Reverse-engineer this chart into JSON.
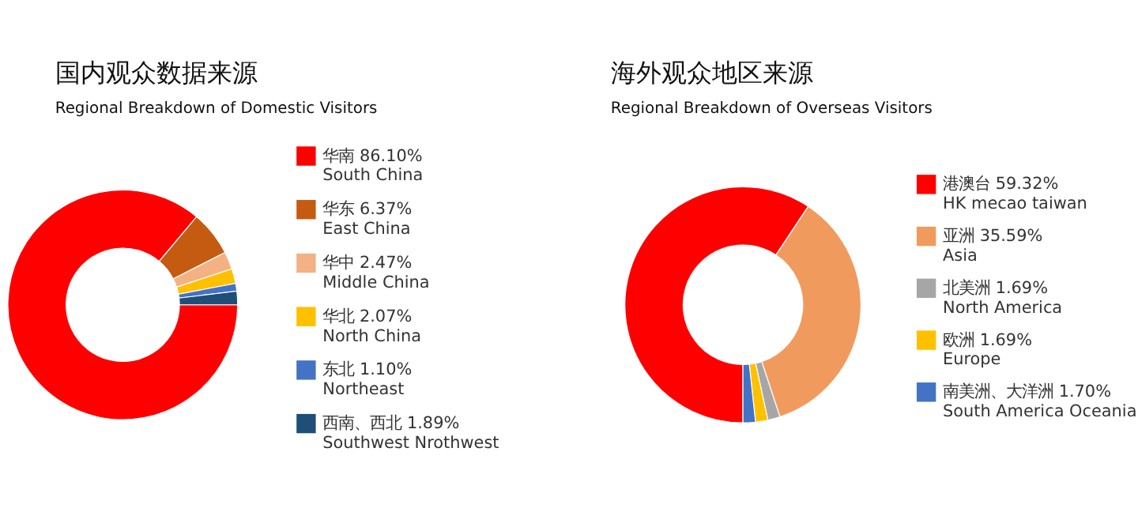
{
  "chart_data": [
    {
      "type": "donut",
      "title": "国内观众数据来源",
      "subtitle": "Regional Breakdown of Domestic Visitors",
      "legend": "right",
      "categories": [
        "华南 86.10%\nSouth China",
        "华东 6.37%\nEast China",
        "华中 2.47%\nMiddle China",
        "华北 2.07%\nNorth China",
        "东北 1.10%\nNortheast",
        "西南、西北 1.89%\nSouthwest Nrothwest"
      ],
      "values": [
        86.1,
        6.37,
        2.47,
        2.07,
        1.1,
        1.89
      ],
      "colors": [
        "#ff0000",
        "#c55a11",
        "#f4b183",
        "#ffc000",
        "#4472c4",
        "#1f4e79"
      ]
    },
    {
      "type": "donut",
      "title": "海外观众地区来源",
      "subtitle": "Regional Breakdown of Overseas Visitors",
      "legend": "right",
      "categories": [
        "港澳台 59.32%\nHK mecao taiwan",
        "亚洲 35.59%\nAsia",
        "北美洲 1.69%\nNorth America",
        "欧洲 1.69%\nEurope",
        "南美洲、大洋洲 1.70%\nSouth America Oceania"
      ],
      "values": [
        59.32,
        35.59,
        1.69,
        1.69,
        1.7
      ],
      "colors": [
        "#ff0000",
        "#f19a5e",
        "#a6a6a6",
        "#ffc000",
        "#4472c4"
      ]
    }
  ]
}
